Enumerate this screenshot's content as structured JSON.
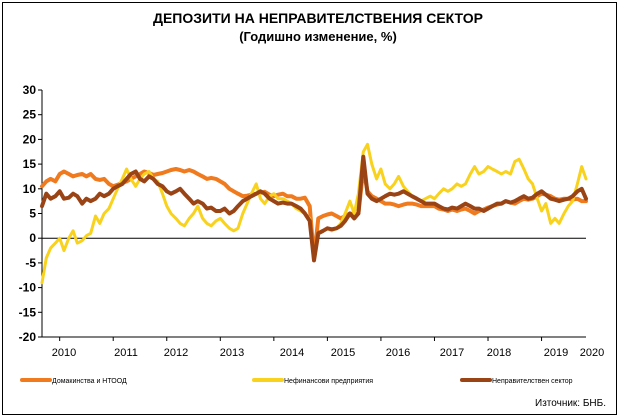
{
  "chart_data": {
    "type": "line",
    "title": "ДЕПОЗИТИ НА НЕПРАВИТЕЛСТВЕНИЯ СЕКТОР",
    "subtitle": "(Годишно изменение, %)",
    "xlabel": "",
    "ylabel": "",
    "ylim": [
      -20,
      30
    ],
    "yticks": [
      30,
      25,
      20,
      15,
      10,
      5,
      0,
      -5,
      -10,
      -15,
      -20
    ],
    "xlim": [
      2009.67,
      2019.83
    ],
    "xtick_labels": [
      "2010",
      "2011",
      "2012",
      "2013",
      "2014",
      "2015",
      "2016",
      "2017",
      "2018",
      "2019",
      "2020"
    ],
    "grid": false,
    "legend_position": "bottom",
    "source": "Източник: БНБ.",
    "series": [
      {
        "name": "Домакинства и НТООД",
        "color": "#F07A1E",
        "x": [
          2009.67,
          2009.75,
          2009.83,
          2009.92,
          2010.0,
          2010.08,
          2010.17,
          2010.25,
          2010.33,
          2010.42,
          2010.5,
          2010.58,
          2010.67,
          2010.75,
          2010.83,
          2010.92,
          2011.0,
          2011.08,
          2011.17,
          2011.25,
          2011.33,
          2011.42,
          2011.5,
          2011.58,
          2011.67,
          2011.75,
          2011.83,
          2011.92,
          2012.0,
          2012.08,
          2012.17,
          2012.25,
          2012.33,
          2012.42,
          2012.5,
          2012.58,
          2012.67,
          2012.75,
          2012.83,
          2012.92,
          2013.0,
          2013.08,
          2013.17,
          2013.25,
          2013.33,
          2013.42,
          2013.5,
          2013.58,
          2013.67,
          2013.75,
          2013.83,
          2013.92,
          2014.0,
          2014.08,
          2014.17,
          2014.25,
          2014.33,
          2014.42,
          2014.5,
          2014.58,
          2014.67,
          2014.75,
          2014.83,
          2014.92,
          2015.0,
          2015.08,
          2015.17,
          2015.25,
          2015.33,
          2015.42,
          2015.5,
          2015.58,
          2015.67,
          2015.75,
          2015.83,
          2015.92,
          2016.0,
          2016.08,
          2016.17,
          2016.25,
          2016.33,
          2016.42,
          2016.5,
          2016.58,
          2016.67,
          2016.75,
          2016.83,
          2016.92,
          2017.0,
          2017.08,
          2017.17,
          2017.25,
          2017.33,
          2017.42,
          2017.5,
          2017.58,
          2017.67,
          2017.75,
          2017.83,
          2017.92,
          2018.0,
          2018.08,
          2018.17,
          2018.25,
          2018.33,
          2018.42,
          2018.5,
          2018.58,
          2018.67,
          2018.75,
          2018.83,
          2018.92,
          2019.0,
          2019.08,
          2019.17,
          2019.25,
          2019.33,
          2019.42,
          2019.5,
          2019.58,
          2019.67,
          2019.75,
          2019.83
        ],
        "values": [
          10.5,
          11.5,
          12.0,
          11.5,
          13.0,
          13.5,
          13.0,
          12.5,
          12.8,
          13.0,
          12.5,
          13.0,
          12.0,
          11.8,
          12.0,
          11.0,
          10.5,
          10.8,
          11.2,
          11.5,
          12.0,
          12.5,
          13.0,
          13.5,
          13.2,
          12.8,
          13.0,
          13.2,
          13.5,
          13.8,
          14.0,
          13.8,
          13.5,
          13.8,
          13.5,
          13.0,
          12.5,
          12.0,
          12.2,
          12.0,
          11.5,
          11.0,
          10.0,
          9.5,
          9.0,
          8.5,
          8.6,
          8.8,
          9.0,
          9.2,
          9.4,
          8.8,
          8.5,
          8.8,
          9.0,
          8.5,
          8.5,
          8.0,
          8.0,
          8.2,
          6.5,
          -4.0,
          4.0,
          4.5,
          4.8,
          5.0,
          4.5,
          4.0,
          4.5,
          5.0,
          4.8,
          5.0,
          14.0,
          9.5,
          8.5,
          8.0,
          7.5,
          7.0,
          7.0,
          6.8,
          6.5,
          6.8,
          7.0,
          7.0,
          6.8,
          6.5,
          6.5,
          6.5,
          6.5,
          6.0,
          5.8,
          5.5,
          5.8,
          5.5,
          5.8,
          6.0,
          5.5,
          5.0,
          5.5,
          5.8,
          6.2,
          6.5,
          6.8,
          7.0,
          7.5,
          7.2,
          7.0,
          7.5,
          8.0,
          7.8,
          8.0,
          8.5,
          9.0,
          8.8,
          8.5,
          8.0,
          7.8,
          8.0,
          8.0,
          7.8,
          8.0,
          7.5,
          7.5
        ]
      },
      {
        "name": "Нефинансови предприятия",
        "color": "#F8D21C",
        "x": [
          2009.67,
          2009.75,
          2009.83,
          2009.92,
          2010.0,
          2010.08,
          2010.17,
          2010.25,
          2010.33,
          2010.42,
          2010.5,
          2010.58,
          2010.67,
          2010.75,
          2010.83,
          2010.92,
          2011.0,
          2011.08,
          2011.17,
          2011.25,
          2011.33,
          2011.42,
          2011.5,
          2011.58,
          2011.67,
          2011.75,
          2011.83,
          2011.92,
          2012.0,
          2012.08,
          2012.17,
          2012.25,
          2012.33,
          2012.42,
          2012.5,
          2012.58,
          2012.67,
          2012.75,
          2012.83,
          2012.92,
          2013.0,
          2013.08,
          2013.17,
          2013.25,
          2013.33,
          2013.42,
          2013.5,
          2013.58,
          2013.67,
          2013.75,
          2013.83,
          2013.92,
          2014.0,
          2014.08,
          2014.17,
          2014.25,
          2014.33,
          2014.42,
          2014.5,
          2014.58,
          2014.67,
          2014.75,
          2014.83,
          2014.92,
          2015.0,
          2015.08,
          2015.17,
          2015.25,
          2015.33,
          2015.42,
          2015.5,
          2015.58,
          2015.67,
          2015.75,
          2015.83,
          2015.92,
          2016.0,
          2016.08,
          2016.17,
          2016.25,
          2016.33,
          2016.42,
          2016.5,
          2016.58,
          2016.67,
          2016.75,
          2016.83,
          2016.92,
          2017.0,
          2017.08,
          2017.17,
          2017.25,
          2017.33,
          2017.42,
          2017.5,
          2017.58,
          2017.67,
          2017.75,
          2017.83,
          2017.92,
          2018.0,
          2018.08,
          2018.17,
          2018.25,
          2018.33,
          2018.42,
          2018.5,
          2018.58,
          2018.67,
          2018.75,
          2018.83,
          2018.92,
          2019.0,
          2019.08,
          2019.17,
          2019.25,
          2019.33,
          2019.42,
          2019.5,
          2019.58,
          2019.67,
          2019.75,
          2019.83
        ],
        "values": [
          -9.0,
          -4.0,
          -2.0,
          -1.0,
          0.0,
          -2.5,
          0.0,
          1.5,
          -1.0,
          -0.5,
          0.5,
          1.0,
          4.5,
          3.0,
          5.0,
          6.0,
          8.0,
          10.0,
          12.0,
          14.0,
          12.0,
          10.5,
          12.0,
          13.0,
          13.5,
          12.0,
          11.5,
          9.0,
          6.5,
          5.0,
          4.0,
          3.0,
          2.5,
          4.0,
          5.0,
          6.5,
          4.0,
          3.0,
          2.5,
          3.5,
          4.0,
          3.0,
          2.0,
          1.5,
          2.0,
          5.0,
          7.0,
          9.0,
          11.0,
          8.0,
          7.0,
          8.5,
          9.0,
          8.0,
          8.0,
          7.5,
          7.0,
          6.0,
          5.5,
          5.0,
          4.0,
          -4.0,
          1.0,
          1.5,
          2.0,
          1.5,
          2.0,
          3.0,
          5.0,
          7.5,
          5.0,
          9.0,
          17.5,
          19.0,
          15.0,
          12.0,
          14.0,
          11.0,
          10.0,
          11.0,
          12.5,
          10.5,
          9.5,
          8.5,
          8.0,
          7.5,
          8.0,
          8.5,
          8.0,
          9.0,
          10.0,
          9.5,
          10.0,
          11.0,
          10.5,
          11.0,
          13.0,
          14.5,
          13.0,
          13.5,
          14.5,
          14.0,
          13.5,
          13.0,
          13.5,
          13.0,
          15.5,
          16.0,
          14.0,
          12.0,
          11.0,
          8.0,
          5.5,
          7.0,
          3.0,
          4.0,
          3.0,
          5.0,
          6.5,
          7.5,
          11.0,
          14.5,
          12.0
        ]
      },
      {
        "name": "Неправителствен сектор",
        "color": "#9A4315",
        "x": [
          2009.67,
          2009.75,
          2009.83,
          2009.92,
          2010.0,
          2010.08,
          2010.17,
          2010.25,
          2010.33,
          2010.42,
          2010.5,
          2010.58,
          2010.67,
          2010.75,
          2010.83,
          2010.92,
          2011.0,
          2011.08,
          2011.17,
          2011.25,
          2011.33,
          2011.42,
          2011.5,
          2011.58,
          2011.67,
          2011.75,
          2011.83,
          2011.92,
          2012.0,
          2012.08,
          2012.17,
          2012.25,
          2012.33,
          2012.42,
          2012.5,
          2012.58,
          2012.67,
          2012.75,
          2012.83,
          2012.92,
          2013.0,
          2013.08,
          2013.17,
          2013.25,
          2013.33,
          2013.42,
          2013.5,
          2013.58,
          2013.67,
          2013.75,
          2013.83,
          2013.92,
          2014.0,
          2014.08,
          2014.17,
          2014.25,
          2014.33,
          2014.42,
          2014.5,
          2014.58,
          2014.67,
          2014.75,
          2014.83,
          2014.92,
          2015.0,
          2015.08,
          2015.17,
          2015.25,
          2015.33,
          2015.42,
          2015.5,
          2015.58,
          2015.67,
          2015.75,
          2015.83,
          2015.92,
          2016.0,
          2016.08,
          2016.17,
          2016.25,
          2016.33,
          2016.42,
          2016.5,
          2016.58,
          2016.67,
          2016.75,
          2016.83,
          2016.92,
          2017.0,
          2017.08,
          2017.17,
          2017.25,
          2017.33,
          2017.42,
          2017.5,
          2017.58,
          2017.67,
          2017.75,
          2017.83,
          2017.92,
          2018.0,
          2018.08,
          2018.17,
          2018.25,
          2018.33,
          2018.42,
          2018.5,
          2018.58,
          2018.67,
          2018.75,
          2018.83,
          2018.92,
          2019.0,
          2019.08,
          2019.17,
          2019.25,
          2019.33,
          2019.42,
          2019.5,
          2019.58,
          2019.67,
          2019.75,
          2019.83
        ],
        "values": [
          6.5,
          9.0,
          8.0,
          8.5,
          9.5,
          8.0,
          8.2,
          9.0,
          8.5,
          7.0,
          8.0,
          7.5,
          8.0,
          9.0,
          8.5,
          9.0,
          10.0,
          10.5,
          11.0,
          12.0,
          13.0,
          13.5,
          12.0,
          11.5,
          12.5,
          12.0,
          11.0,
          10.5,
          9.5,
          9.0,
          9.5,
          10.0,
          9.0,
          8.0,
          7.0,
          7.5,
          7.0,
          6.0,
          6.2,
          5.5,
          5.5,
          6.0,
          5.0,
          5.5,
          6.5,
          7.5,
          8.0,
          8.5,
          9.0,
          9.5,
          9.0,
          8.0,
          7.5,
          7.0,
          7.2,
          7.0,
          7.0,
          6.5,
          6.0,
          5.0,
          3.5,
          -4.5,
          1.0,
          1.5,
          2.0,
          1.8,
          2.0,
          2.5,
          3.5,
          5.0,
          4.0,
          5.0,
          16.5,
          9.0,
          8.0,
          7.5,
          8.0,
          8.5,
          9.0,
          8.8,
          9.0,
          9.5,
          9.0,
          8.5,
          8.0,
          7.5,
          7.0,
          7.0,
          7.0,
          6.5,
          6.0,
          5.8,
          6.2,
          6.0,
          6.5,
          7.0,
          6.5,
          6.0,
          6.0,
          5.5,
          6.0,
          6.5,
          7.0,
          7.0,
          7.5,
          7.2,
          7.5,
          8.0,
          8.5,
          8.0,
          8.2,
          9.0,
          9.5,
          8.8,
          8.0,
          7.8,
          7.5,
          7.8,
          8.0,
          8.5,
          9.5,
          10.0,
          8.0
        ]
      }
    ]
  }
}
